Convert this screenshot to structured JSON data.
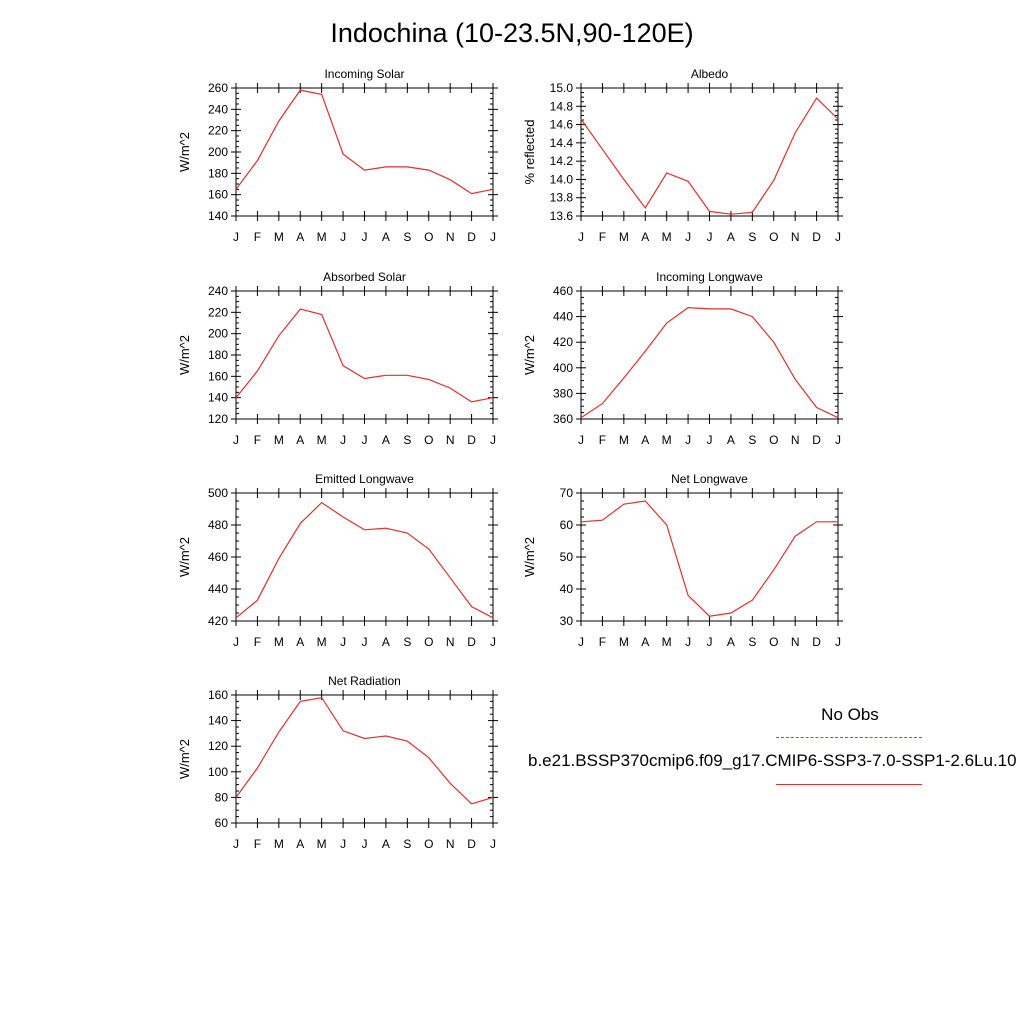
{
  "title": "Indochina (10-23.5N,90-120E)",
  "legend": {
    "obs_label": "No Obs",
    "obs_color": "#5a5ae6",
    "model_label": "b.e21.BSSP370cmip6.f09_g17.CMIP6-SSP3-7.0-SSP1-2.6Lu.10",
    "model_color": "#e03030"
  },
  "chart_data": [
    {
      "type": "line",
      "title": "Incoming Solar",
      "ylabel": "W/m^2",
      "ylim": [
        140,
        260
      ],
      "yticks": [
        "140",
        "160",
        "180",
        "200",
        "220",
        "240",
        "260"
      ],
      "xticks": [
        "J",
        "F",
        "M",
        "A",
        "M",
        "J",
        "J",
        "A",
        "S",
        "O",
        "N",
        "D",
        "J"
      ],
      "series": [
        {
          "values": [
            165,
            192,
            229,
            258,
            254,
            198,
            183,
            186,
            186,
            183,
            174,
            161,
            165
          ]
        }
      ]
    },
    {
      "type": "line",
      "title": "Albedo",
      "ylabel": "% reflected",
      "ylim": [
        13.6,
        15.0
      ],
      "yticks": [
        "13.6",
        "13.8",
        "14.0",
        "14.2",
        "14.4",
        "14.6",
        "14.8",
        "15.0"
      ],
      "xticks": [
        "J",
        "F",
        "M",
        "A",
        "M",
        "J",
        "J",
        "A",
        "S",
        "O",
        "N",
        "D",
        "J"
      ],
      "series": [
        {
          "values": [
            14.66,
            14.33,
            14.0,
            13.69,
            14.07,
            13.98,
            13.65,
            13.62,
            13.64,
            13.99,
            14.51,
            14.89,
            14.66
          ]
        }
      ]
    },
    {
      "type": "line",
      "title": "Absorbed Solar",
      "ylabel": "W/m^2",
      "ylim": [
        120,
        240
      ],
      "yticks": [
        "120",
        "140",
        "160",
        "180",
        "200",
        "220",
        "240"
      ],
      "xticks": [
        "J",
        "F",
        "M",
        "A",
        "M",
        "J",
        "J",
        "A",
        "S",
        "O",
        "N",
        "D",
        "J"
      ],
      "series": [
        {
          "values": [
            140,
            165,
            198,
            223,
            218,
            170,
            158,
            161,
            161,
            157,
            149,
            136,
            140
          ]
        }
      ]
    },
    {
      "type": "line",
      "title": "Incoming Longwave",
      "ylabel": "W/m^2",
      "ylim": [
        360,
        460
      ],
      "yticks": [
        "360",
        "380",
        "400",
        "420",
        "440",
        "460"
      ],
      "xticks": [
        "J",
        "F",
        "M",
        "A",
        "M",
        "J",
        "J",
        "A",
        "S",
        "O",
        "N",
        "D",
        "J"
      ],
      "series": [
        {
          "values": [
            361,
            372,
            392,
            413,
            435,
            447,
            446,
            446,
            440,
            420,
            391,
            369,
            361
          ]
        }
      ]
    },
    {
      "type": "line",
      "title": "Emitted Longwave",
      "ylabel": "W/m^2",
      "ylim": [
        420,
        500
      ],
      "yticks": [
        "420",
        "440",
        "460",
        "480",
        "500"
      ],
      "xticks": [
        "J",
        "F",
        "M",
        "A",
        "M",
        "J",
        "J",
        "A",
        "S",
        "O",
        "N",
        "D",
        "J"
      ],
      "series": [
        {
          "values": [
            422,
            433,
            459,
            481,
            494,
            485,
            477,
            478,
            475,
            465,
            447,
            429,
            422
          ]
        }
      ]
    },
    {
      "type": "line",
      "title": "Net Longwave",
      "ylabel": "W/m^2",
      "ylim": [
        30,
        70
      ],
      "yticks": [
        "30",
        "40",
        "50",
        "60",
        "70"
      ],
      "xticks": [
        "J",
        "F",
        "M",
        "A",
        "M",
        "J",
        "J",
        "A",
        "S",
        "O",
        "N",
        "D",
        "J"
      ],
      "series": [
        {
          "values": [
            61,
            61.5,
            66.5,
            67.5,
            60,
            38,
            31.5,
            32.5,
            36.5,
            46,
            56.5,
            61,
            61
          ]
        }
      ]
    },
    {
      "type": "line",
      "title": "Net Radiation",
      "ylabel": "W/m^2",
      "ylim": [
        60,
        160
      ],
      "yticks": [
        "60",
        "80",
        "100",
        "120",
        "140",
        "160"
      ],
      "xticks": [
        "J",
        "F",
        "M",
        "A",
        "M",
        "J",
        "J",
        "A",
        "S",
        "O",
        "N",
        "D",
        "J"
      ],
      "series": [
        {
          "values": [
            80,
            103,
            131,
            155,
            158,
            132,
            126,
            128,
            124,
            111,
            91,
            75,
            80
          ]
        }
      ]
    }
  ]
}
